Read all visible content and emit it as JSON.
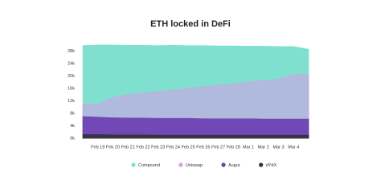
{
  "chart_data": {
    "type": "area",
    "title": "ETH locked in DeFi",
    "categories": [
      null,
      "Feb 19",
      "Feb 20",
      "Feb 21",
      "Feb 22",
      "Feb 23",
      "Feb 24",
      "Feb 25",
      "Feb 26",
      "Feb 27",
      "Feb 28",
      "Mar 1",
      "Mar 2",
      "Mar 3",
      "Mar 4",
      null
    ],
    "series": [
      {
        "name": "Compound",
        "color": "#7fe0d0",
        "values": [
          29.8,
          30.0,
          30.0,
          29.9,
          29.9,
          29.8,
          29.9,
          29.8,
          29.8,
          29.7,
          29.7,
          29.6,
          29.6,
          29.5,
          29.5,
          28.6
        ]
      },
      {
        "name": "Uniswap",
        "color": "#d99be6",
        "values": [
          11.0,
          11.0,
          13.0,
          14.0,
          14.5,
          15.0,
          15.5,
          16.0,
          16.5,
          17.0,
          17.5,
          18.0,
          18.5,
          19.0,
          20.5,
          20.5
        ]
      },
      {
        "name": "Augur",
        "color": "#6a3cb0",
        "values": [
          7.0,
          6.8,
          6.6,
          6.5,
          6.5,
          6.4,
          6.4,
          6.4,
          6.3,
          6.3,
          6.3,
          6.3,
          6.2,
          6.2,
          6.2,
          6.2
        ]
      },
      {
        "name": "dYdX",
        "color": "#333333",
        "values": [
          1.2,
          1.2,
          1.1,
          1.1,
          1.1,
          1.0,
          1.0,
          1.0,
          1.0,
          1.0,
          1.0,
          1.0,
          1.0,
          1.0,
          1.0,
          1.0
        ]
      }
    ],
    "ylim": [
      0,
      31
    ],
    "yticks": [
      {
        "value": 0,
        "label": "0k"
      },
      {
        "value": 4,
        "label": "4k"
      },
      {
        "value": 8,
        "label": "8k"
      },
      {
        "value": 12,
        "label": "12k"
      },
      {
        "value": 16,
        "label": "16k"
      },
      {
        "value": 20,
        "label": "20k"
      },
      {
        "value": 24,
        "label": "24k"
      },
      {
        "value": 28,
        "label": "28k"
      }
    ],
    "grid": true
  }
}
